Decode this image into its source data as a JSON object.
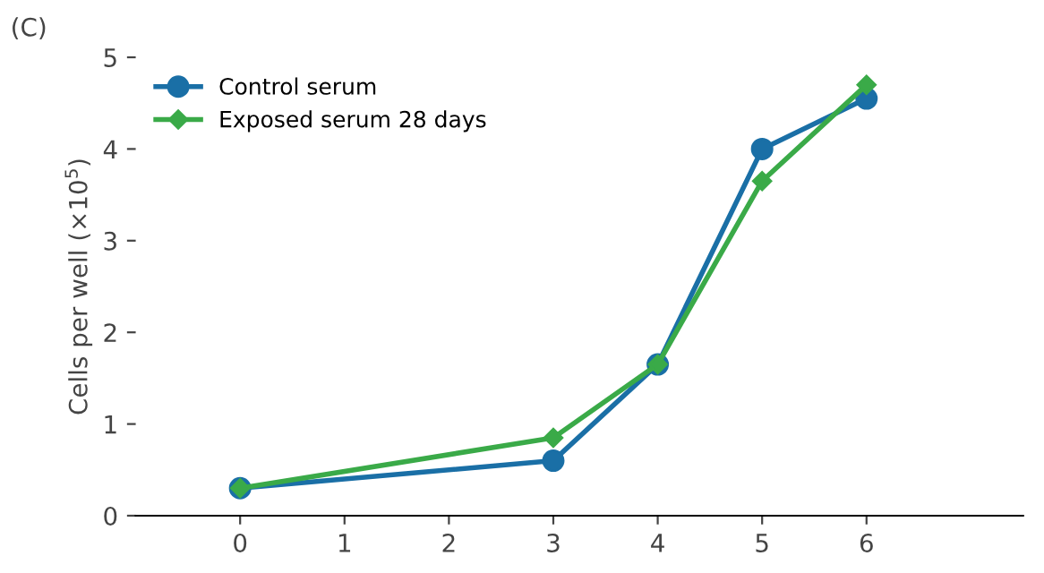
{
  "chart_data": {
    "type": "line",
    "ylabel": "Cells per well (×10$^{5}$)",
    "annotations": [
      "(C)"
    ],
    "x": [
      0,
      3,
      4,
      5,
      6
    ],
    "series": [
      {
        "name": "Control serum",
        "color": "#1a6fa6",
        "marker": "circle",
        "values": [
          0.3,
          0.6,
          1.65,
          4.0,
          4.55
        ]
      },
      {
        "name": "Exposed serum 28 days",
        "color": "#3aaa48",
        "marker": "diamond",
        "values": [
          0.3,
          0.85,
          1.65,
          3.65,
          4.7
        ]
      }
    ],
    "xlim": [
      -1,
      7.5
    ],
    "xticks": [
      0,
      1,
      2,
      3,
      4,
      5,
      6
    ],
    "ylim": [
      0,
      5
    ],
    "yticks": [
      0,
      1,
      2,
      3,
      4,
      5
    ],
    "grid": false,
    "legend": "top left",
    "line_style": "solid"
  }
}
